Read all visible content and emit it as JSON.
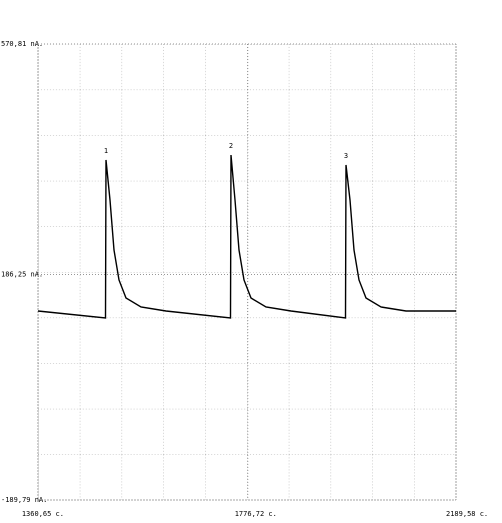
{
  "chart_data": {
    "type": "line",
    "x": [
      1360.65,
      1494.51,
      1495.5,
      1503.43,
      1511.36,
      1521.28,
      1535.16,
      1564.91,
      1614.49,
      1742.39,
      1743.39,
      1751.32,
      1759.25,
      1769.17,
      1783.05,
      1812.79,
      1862.37,
      1970.45,
      1971.44,
      1979.37,
      1987.31,
      1997.22,
      2011.1,
      2040.85,
      2090.43,
      2189.58
    ],
    "series": [
      {
        "color": "#000000",
        "values": [
          125.46,
          113.78,
          377.32,
          310.61,
          227.21,
          177.17,
          147.14,
          132.13,
          125.46,
          113.78,
          385.66,
          310.61,
          227.21,
          177.17,
          147.14,
          132.13,
          125.46,
          113.78,
          368.98,
          310.61,
          227.21,
          177.17,
          147.14,
          132.13,
          125.46,
          125.46
        ]
      }
    ],
    "annotations": [
      {
        "text": "1",
        "x": 1495.5,
        "y": 377.32
      },
      {
        "text": "2",
        "x": 1743.39,
        "y": 385.66
      },
      {
        "text": "3",
        "x": 1971.44,
        "y": 368.98
      }
    ],
    "xlim": [
      1360.65,
      2189.58
    ],
    "xticks": [
      {
        "value": 1360.65,
        "label": "1360,65 c."
      },
      {
        "value": 1776.72,
        "label": "1776,72 c."
      },
      {
        "value": 2189.58,
        "label": "2189,58 c."
      }
    ],
    "ylim": [
      -189.79,
      570.81
    ],
    "yticks": [
      {
        "value": -189.79,
        "label": "-189,79 nA."
      },
      {
        "value": 186.25,
        "label": "186,25 nA."
      },
      {
        "value": 570.81,
        "label": "570,81 nA."
      }
    ],
    "grid": true
  }
}
